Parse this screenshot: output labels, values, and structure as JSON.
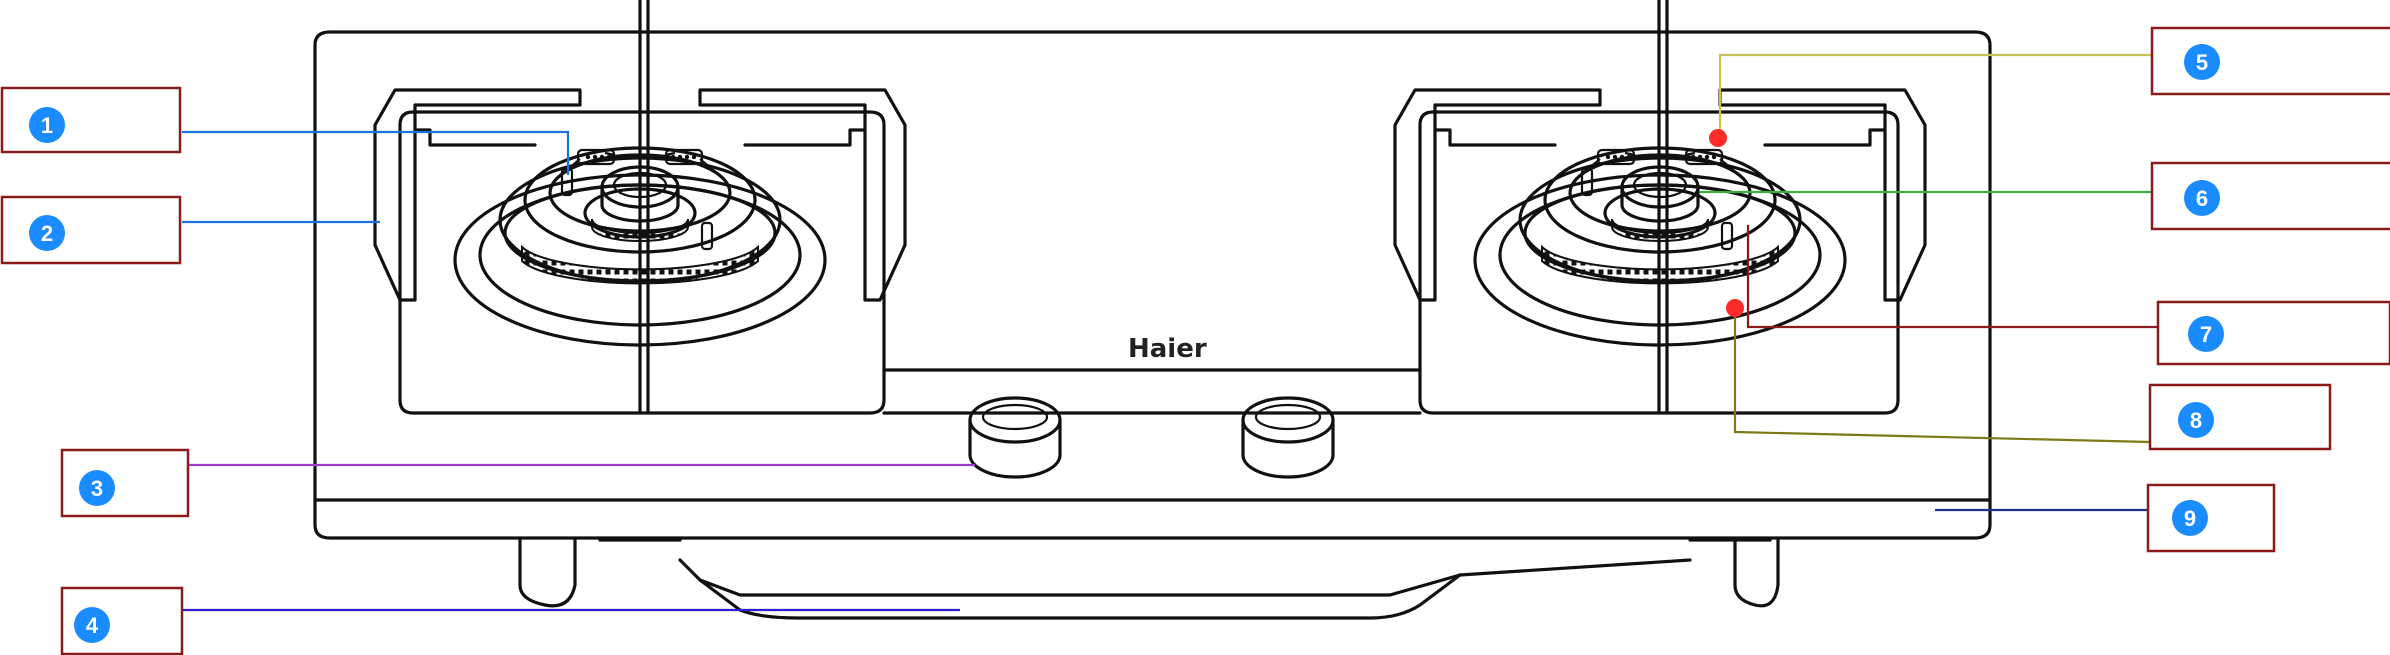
{
  "diagram": {
    "brand_text": "Haier",
    "callouts": [
      {
        "id": "1",
        "label": "1",
        "color": "#1f6fe0"
      },
      {
        "id": "2",
        "label": "2",
        "color": "#1f6fe0"
      },
      {
        "id": "3",
        "label": "3",
        "color": "#9b3fc6"
      },
      {
        "id": "4",
        "label": "4",
        "color": "#2b1fd0"
      },
      {
        "id": "5",
        "label": "5",
        "color": "#c8c45a"
      },
      {
        "id": "6",
        "label": "6",
        "color": "#3fae3f"
      },
      {
        "id": "7",
        "label": "7",
        "color": "#8b1a1a"
      },
      {
        "id": "8",
        "label": "8",
        "color": "#7d7a18"
      },
      {
        "id": "9",
        "label": "9",
        "color": "#1f2f8a"
      }
    ]
  }
}
